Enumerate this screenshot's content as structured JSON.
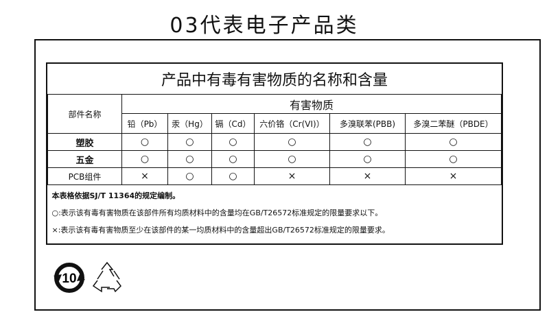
{
  "page_title": "03代表电子产品类",
  "table": {
    "title": "产品中有毒有害物质的名称和含量",
    "part_header": "部件名称",
    "substance_header": "有害物质",
    "columns": [
      "铅（Pb）",
      "汞（Hg）",
      "镉（Cd）",
      "六价铬（Cr(VI)）",
      "多溴联苯(PBB)",
      "多溴二苯醚（PBDE）"
    ],
    "rows": [
      {
        "part": "塑胶",
        "values": [
          "○",
          "○",
          "○",
          "○",
          "○",
          "○"
        ]
      },
      {
        "part": "五金",
        "values": [
          "○",
          "○",
          "○",
          "○",
          "○",
          "○"
        ]
      },
      {
        "part": "PCB组件",
        "values": [
          "×",
          "○",
          "○",
          "×",
          "×",
          "×"
        ]
      }
    ],
    "notes": [
      "本表格依据SJ/T 11364的规定编制。",
      "○:表示该有毒有害物质在该部件所有均质材料中的含量均在GB/T26572标准规定的限量要求以下。",
      "×:表示该有毒有害物质至少在该部件的某一均质材料中的含量超出GB/T26572标准规定的限量要求。"
    ]
  },
  "logos": {
    "efup_number": "10",
    "efup_icon": "environment-friendly-use-period-icon",
    "recycle_icon": "recycle-icon"
  }
}
